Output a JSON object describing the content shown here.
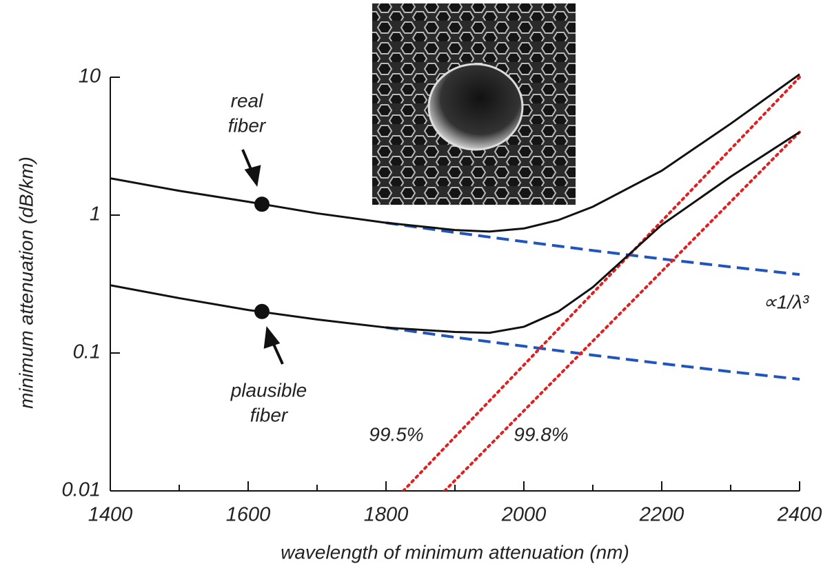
{
  "chart_data": {
    "type": "line",
    "xlabel": "wavelength of minimum attenuation (nm)",
    "ylabel": "minimum attenuation (dB/km)",
    "log_y": true,
    "xlim": [
      1400,
      2400
    ],
    "ylim": [
      0.01,
      10
    ],
    "xticks": [
      1400,
      1600,
      1800,
      2000,
      2200,
      2400
    ],
    "xminorticks": [
      1500,
      1700,
      1900,
      2100,
      2300
    ],
    "yticks": [
      {
        "value": 0.01,
        "label": "0.01"
      },
      {
        "value": 0.1,
        "label": "0.1"
      },
      1,
      10
    ],
    "series": [
      {
        "color": "#111111",
        "style": "solid",
        "x": [
          1400,
          1500,
          1600,
          1700,
          1800,
          1900,
          1950,
          2000,
          2050,
          2100,
          2200,
          2300,
          2400
        ],
        "values": [
          1.85,
          1.5,
          1.25,
          1.03,
          0.88,
          0.78,
          0.76,
          0.8,
          0.92,
          1.15,
          2.1,
          4.6,
          10.5
        ]
      },
      {
        "color": "#111111",
        "style": "solid",
        "x": [
          1400,
          1500,
          1600,
          1700,
          1800,
          1900,
          1950,
          2000,
          2050,
          2100,
          2200,
          2300,
          2400
        ],
        "values": [
          0.31,
          0.25,
          0.205,
          0.175,
          0.153,
          0.142,
          0.14,
          0.155,
          0.2,
          0.3,
          0.85,
          1.9,
          4.0
        ]
      },
      {
        "color": "#2255bb",
        "style": "dashed",
        "x": [
          1800,
          1900,
          2000,
          2100,
          2200,
          2300,
          2400
        ],
        "values": [
          0.88,
          0.748,
          0.642,
          0.554,
          0.481,
          0.421,
          0.371
        ]
      },
      {
        "color": "#2255bb",
        "style": "dashed",
        "x": [
          1800,
          1900,
          2000,
          2100,
          2200,
          2300,
          2400
        ],
        "values": [
          0.153,
          0.13,
          0.112,
          0.0965,
          0.0838,
          0.0732,
          0.0645
        ]
      },
      {
        "color": "#e02020",
        "style": "dotted",
        "x": [
          1825,
          2400
        ],
        "values": [
          0.01,
          10
        ]
      },
      {
        "color": "#e02020",
        "style": "dotted",
        "x": [
          1885,
          2400
        ],
        "values": [
          0.01,
          4
        ]
      }
    ],
    "points": [
      {
        "x": 1620,
        "y": 1.2
      },
      {
        "x": 1620,
        "y": 0.2
      }
    ],
    "annotations": [
      [
        "real",
        "fiber"
      ],
      [
        "plausible",
        "fiber"
      ],
      [
        "99.5%"
      ],
      [
        "99.8%"
      ],
      [
        "∝1/λ³"
      ]
    ]
  }
}
